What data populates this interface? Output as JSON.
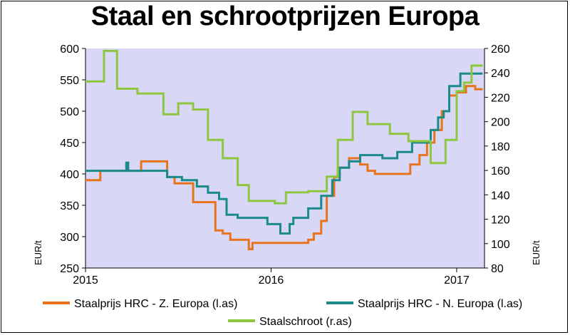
{
  "chart_data": {
    "type": "line",
    "title": "Staal en schrootprijzen Europa",
    "ylabel_left": "EUR/t",
    "ylabel_right": "EUR/t",
    "ylim_left": [
      250,
      600
    ],
    "ylim_right": [
      80,
      260
    ],
    "xlim": [
      2015.0,
      2017.15
    ],
    "yticks_left": [
      250,
      300,
      350,
      400,
      450,
      500,
      550,
      600
    ],
    "yticks_right": [
      80,
      100,
      120,
      140,
      160,
      180,
      200,
      220,
      240,
      260
    ],
    "xticks": [
      {
        "value": 2015,
        "label": "2015"
      },
      {
        "value": 2016,
        "label": "2016"
      },
      {
        "value": 2017,
        "label": "2017"
      }
    ],
    "grid": false,
    "legend_position": "bottom",
    "series": [
      {
        "name": "Staalprijs HRC - Z. Europa (l.as)",
        "axis": "left",
        "color": "#E8731C",
        "x": [
          2015.0,
          2015.08,
          2015.08,
          2015.3,
          2015.3,
          2015.44,
          2015.44,
          2015.48,
          2015.48,
          2015.58,
          2015.58,
          2015.7,
          2015.7,
          2015.74,
          2015.74,
          2015.78,
          2015.78,
          2015.88,
          2015.88,
          2015.9,
          2015.9,
          2015.92,
          2015.92,
          2016.2,
          2016.2,
          2016.23,
          2016.23,
          2016.27,
          2016.27,
          2016.3,
          2016.3,
          2016.34,
          2016.34,
          2016.36,
          2016.36,
          2016.42,
          2016.42,
          2016.45,
          2016.45,
          2016.48,
          2016.48,
          2016.52,
          2016.52,
          2016.56,
          2016.56,
          2016.75,
          2016.75,
          2016.8,
          2016.8,
          2016.84,
          2016.84,
          2016.88,
          2016.88,
          2016.92,
          2016.92,
          2016.96,
          2016.96,
          2017.0,
          2017.0,
          2017.05,
          2017.05,
          2017.1,
          2017.1,
          2017.14
        ],
        "values": [
          390,
          390,
          405,
          405,
          420,
          420,
          395,
          395,
          385,
          385,
          355,
          355,
          310,
          310,
          305,
          305,
          295,
          295,
          280,
          280,
          290,
          290,
          290,
          290,
          295,
          295,
          305,
          305,
          325,
          325,
          365,
          365,
          395,
          395,
          410,
          410,
          425,
          425,
          425,
          425,
          415,
          415,
          405,
          405,
          400,
          400,
          415,
          415,
          430,
          430,
          450,
          450,
          470,
          470,
          500,
          500,
          525,
          525,
          530,
          530,
          540,
          540,
          535,
          535
        ]
      },
      {
        "name": "Staalprijs HRC - N. Europa (l.as)",
        "axis": "left",
        "color": "#1A8A8A",
        "x": [
          2015.0,
          2015.22,
          2015.22,
          2015.23,
          2015.23,
          2015.44,
          2015.44,
          2015.52,
          2015.52,
          2015.6,
          2015.6,
          2015.66,
          2015.66,
          2015.72,
          2015.72,
          2015.76,
          2015.76,
          2015.82,
          2015.82,
          2015.98,
          2015.98,
          2016.05,
          2016.05,
          2016.1,
          2016.1,
          2016.12,
          2016.12,
          2016.2,
          2016.2,
          2016.27,
          2016.27,
          2016.33,
          2016.33,
          2016.37,
          2016.37,
          2016.42,
          2016.42,
          2016.48,
          2016.48,
          2016.6,
          2016.6,
          2016.68,
          2016.68,
          2016.76,
          2016.76,
          2016.86,
          2016.86,
          2016.9,
          2016.9,
          2016.93,
          2016.93,
          2016.96,
          2016.96,
          2017.02,
          2017.02,
          2017.1,
          2017.1,
          2017.14
        ],
        "values": [
          405,
          405,
          418,
          418,
          405,
          405,
          395,
          395,
          390,
          390,
          380,
          380,
          370,
          370,
          360,
          360,
          335,
          335,
          330,
          330,
          320,
          320,
          305,
          305,
          320,
          320,
          330,
          330,
          345,
          345,
          365,
          365,
          390,
          390,
          410,
          410,
          420,
          420,
          430,
          430,
          425,
          425,
          435,
          435,
          450,
          450,
          470,
          470,
          490,
          490,
          500,
          500,
          540,
          540,
          560,
          560,
          560,
          560
        ]
      },
      {
        "name": "Staalschroot (r.as)",
        "axis": "right",
        "color": "#8DC63F",
        "x": [
          2015.0,
          2015.1,
          2015.1,
          2015.17,
          2015.17,
          2015.28,
          2015.28,
          2015.42,
          2015.42,
          2015.5,
          2015.5,
          2015.58,
          2015.58,
          2015.66,
          2015.66,
          2015.74,
          2015.74,
          2015.82,
          2015.82,
          2015.88,
          2015.88,
          2016.02,
          2016.02,
          2016.08,
          2016.08,
          2016.2,
          2016.2,
          2016.3,
          2016.3,
          2016.36,
          2016.36,
          2016.44,
          2016.44,
          2016.52,
          2016.52,
          2016.64,
          2016.64,
          2016.74,
          2016.74,
          2016.86,
          2016.86,
          2016.94,
          2016.94,
          2017.0,
          2017.0,
          2017.04,
          2017.04,
          2017.08,
          2017.08,
          2017.14
        ],
        "values": [
          233,
          233,
          258,
          258,
          227,
          227,
          223,
          223,
          206,
          206,
          215,
          215,
          210,
          210,
          185,
          185,
          170,
          170,
          148,
          148,
          135,
          135,
          133,
          133,
          142,
          142,
          143,
          143,
          155,
          155,
          185,
          185,
          208,
          208,
          198,
          198,
          190,
          190,
          184,
          184,
          166,
          166,
          185,
          185,
          225,
          225,
          232,
          232,
          246,
          246
        ]
      }
    ]
  }
}
